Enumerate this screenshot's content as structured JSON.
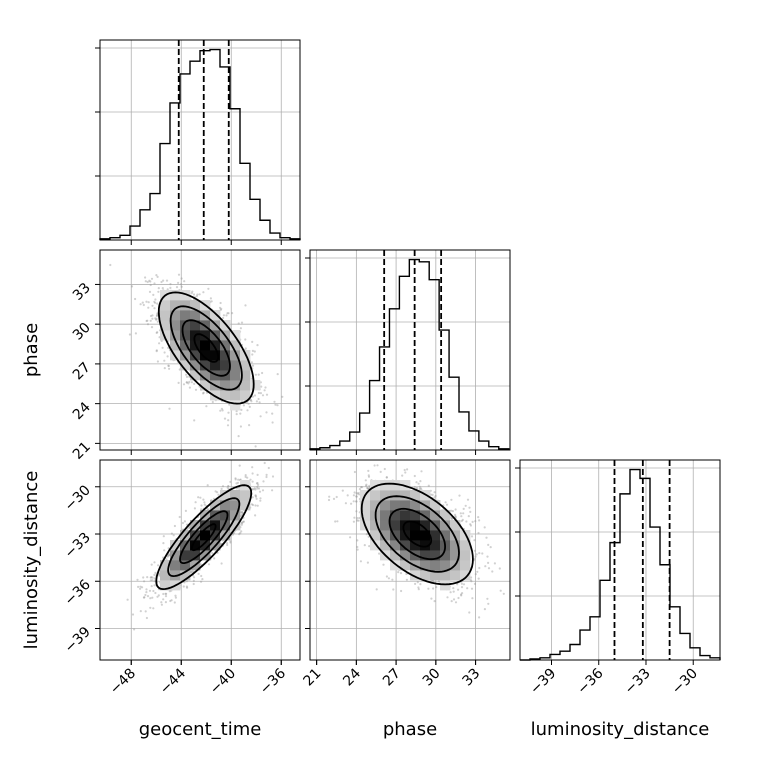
{
  "chart_data": {
    "type": "corner",
    "parameters": [
      "geocent_time",
      "phase",
      "luminosity_distance"
    ],
    "axes": {
      "geocent_time": {
        "label": "geocent_time",
        "range": [
          -50.5,
          -34.5
        ],
        "ticks": [
          -48,
          -44,
          -40,
          -36
        ],
        "tick_labels": [
          "−48",
          "−44",
          "−40",
          "−36"
        ]
      },
      "phase": {
        "label": "phase",
        "range": [
          20.5,
          35.6
        ],
        "ticks": [
          21,
          24,
          27,
          30,
          33
        ],
        "tick_labels": [
          "21",
          "24",
          "27",
          "30",
          "33"
        ]
      },
      "luminosity_distance": {
        "label": "luminosity_distance",
        "range": [
          -41.0,
          -28.3
        ],
        "ticks": [
          -39,
          -36,
          -33,
          -30
        ],
        "tick_labels": [
          "−39",
          "−36",
          "−33",
          "−30"
        ]
      }
    },
    "diagonal_histograms": [
      {
        "parameter": "geocent_time",
        "bin_edges": [
          -50.5,
          -49.7,
          -48.9,
          -48.1,
          -47.3,
          -46.5,
          -45.7,
          -44.9,
          -44.1,
          -43.3,
          -42.5,
          -41.7,
          -40.9,
          -40.1,
          -39.3,
          -38.5,
          -37.7,
          -36.9,
          -36.1,
          -35.3,
          -34.5
        ],
        "counts": [
          1,
          2,
          4,
          12,
          26,
          40,
          83,
          118,
          143,
          154,
          163,
          164,
          149,
          113,
          66,
          35,
          17,
          6,
          2,
          1
        ],
        "quantiles": [
          -44.2,
          -42.2,
          -40.2
        ]
      },
      {
        "parameter": "phase",
        "bin_edges": [
          20.5,
          21.25,
          22.0,
          22.75,
          23.5,
          24.25,
          25.0,
          25.75,
          26.5,
          27.25,
          28.0,
          28.75,
          29.5,
          30.25,
          31.0,
          31.75,
          32.5,
          33.25,
          34.0,
          34.75,
          35.5
        ],
        "counts": [
          1,
          2,
          4,
          8,
          16,
          33,
          62,
          92,
          126,
          155,
          170,
          168,
          152,
          107,
          65,
          34,
          17,
          8,
          3,
          1
        ],
        "quantiles": [
          26.1,
          28.4,
          30.4
        ]
      },
      {
        "parameter": "luminosity_distance",
        "bin_edges": [
          -41.0,
          -40.365,
          -39.73,
          -39.095,
          -38.46,
          -37.825,
          -37.19,
          -36.555,
          -35.92,
          -35.285,
          -34.65,
          -34.015,
          -33.38,
          -32.745,
          -32.11,
          -31.475,
          -30.84,
          -30.205,
          -29.57,
          -28.935,
          -28.3
        ],
        "counts": [
          0,
          1,
          2,
          5,
          8,
          14,
          27,
          39,
          72,
          106,
          150,
          172,
          164,
          120,
          86,
          48,
          24,
          11,
          4,
          2
        ],
        "quantiles": [
          -35.0,
          -33.2,
          -31.5
        ]
      }
    ],
    "pairs": [
      {
        "x": "geocent_time",
        "y": "phase",
        "center": [
          -42.0,
          28.2
        ],
        "sigma": [
          1.9,
          2.1
        ],
        "correlation": -0.65,
        "contour_levels_sigma": [
          0.5,
          1.0,
          1.5,
          2.0
        ]
      },
      {
        "x": "geocent_time",
        "y": "luminosity_distance",
        "center": [
          -42.2,
          -33.2
        ],
        "sigma": [
          1.9,
          1.65
        ],
        "correlation": 0.85,
        "contour_levels_sigma": [
          0.5,
          1.0,
          1.5,
          2.0
        ]
      },
      {
        "x": "phase",
        "y": "luminosity_distance",
        "center": [
          28.6,
          -33.0
        ],
        "sigma": [
          2.1,
          1.6
        ],
        "correlation": -0.5,
        "contour_levels_sigma": [
          0.5,
          1.0,
          1.5,
          2.0
        ]
      }
    ],
    "grid": true,
    "colors": {
      "density": "#000000",
      "points": "#9a9a9a",
      "grid": "#b0b0b0"
    }
  }
}
